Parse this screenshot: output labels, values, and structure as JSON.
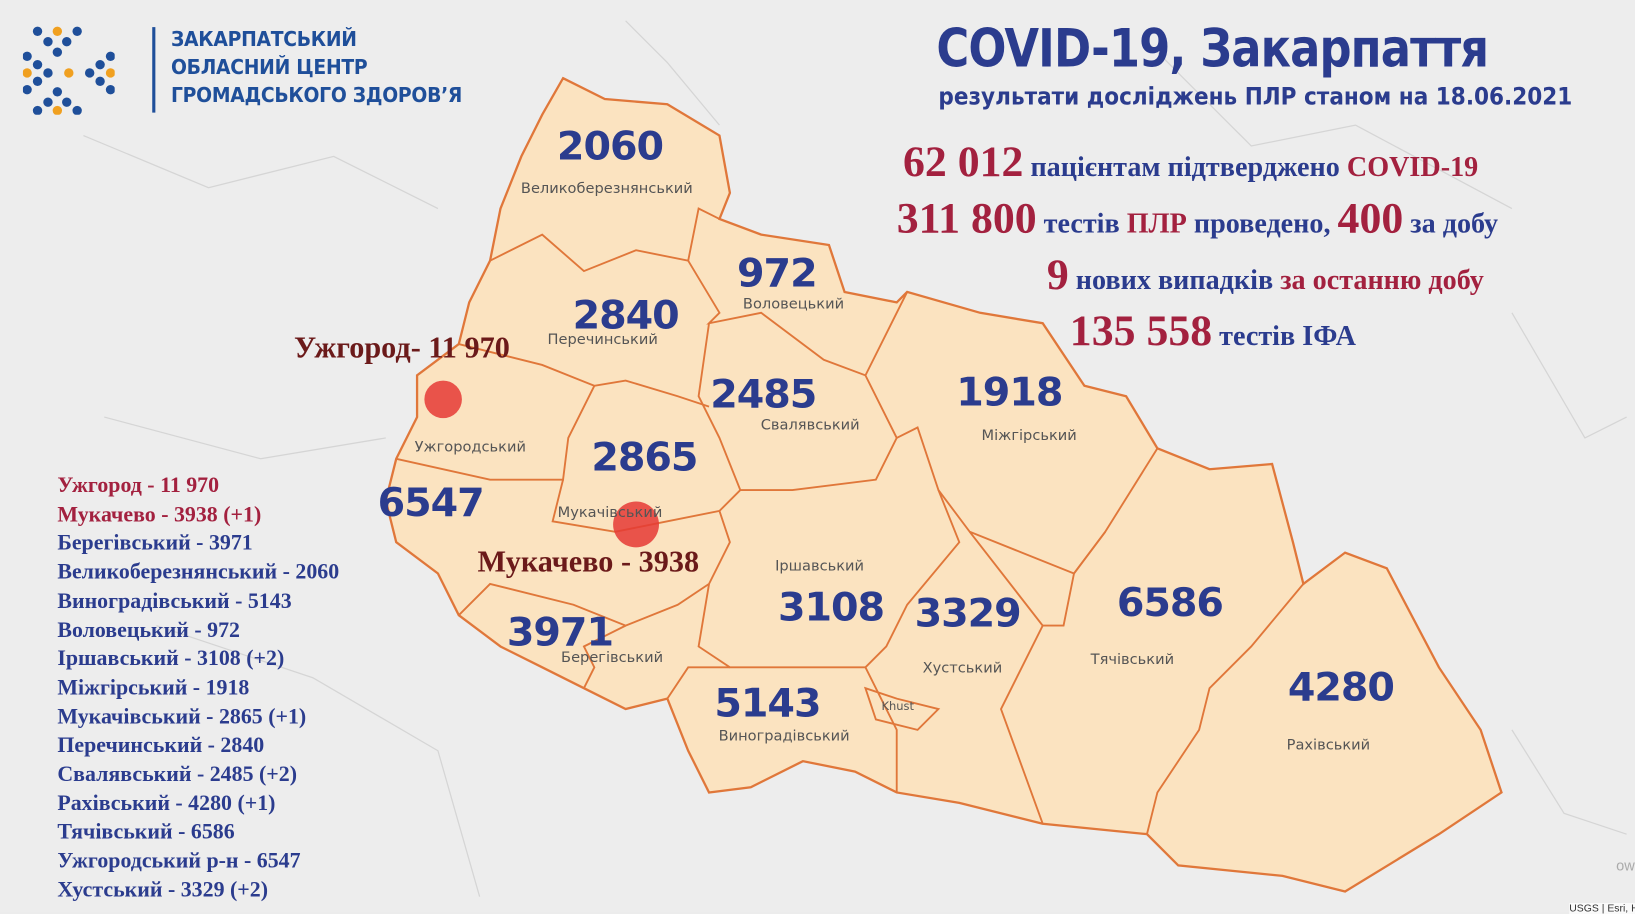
{
  "header": {
    "org_lines": [
      "ЗАКАРПАТСЬКИЙ",
      "ОБЛАСНИЙ ЦЕНТР",
      "ГРОМАДСЬКОГО ЗДОРОВ’Я"
    ],
    "title": "COVID-19, Закарпаття",
    "subtitle": "результати досліджень ПЛР станом на  18.06.2021"
  },
  "stats": {
    "confirmed": "62 012",
    "confirmed_text": "пацієнтам підтверджено",
    "confirmed_tag": "COVID-19",
    "tests": "311 800",
    "tests_text1": "тестів",
    "tests_tag": "ПЛР",
    "tests_text2": "проведено,",
    "tests_day": "400",
    "tests_day_text": "за добу",
    "new_cases": "9",
    "new_text": "нових випадків",
    "new_tag": "за останню добу",
    "ifa": "135 558",
    "ifa_text": "тестів ІФА"
  },
  "map": {
    "districts": [
      {
        "name": "Великоберезнянський",
        "count": "2060"
      },
      {
        "name": "Воловецький",
        "count": "972"
      },
      {
        "name": "Перечинський",
        "count": "2840"
      },
      {
        "name": "Свалявський",
        "count": "2485"
      },
      {
        "name": "Міжгірський",
        "count": "1918"
      },
      {
        "name": "Ужгородський",
        "count": "6547"
      },
      {
        "name": "Мукачівський",
        "count": "2865"
      },
      {
        "name": "Іршавський",
        "count": "3108"
      },
      {
        "name": "Хустський",
        "count": "3329"
      },
      {
        "name": "Тячівський",
        "count": "6586"
      },
      {
        "name": "Рахівський",
        "count": "4280"
      },
      {
        "name": "Берегівський",
        "count": "3971"
      },
      {
        "name": "Виноградівський",
        "count": "5143"
      }
    ],
    "khust": "Khust",
    "uzhhorod_label": "Ужгород- 11 970",
    "mukachevo_label": "Мукачево - 3938",
    "hotspot_color": "#e53935",
    "region_fill": "#fbe3c0",
    "border_color": "#e0773a",
    "attribution": "USGS | Esri, H",
    "corner_text": "ow"
  },
  "list": [
    {
      "text": "Ужгород - 11 970",
      "highlight": true
    },
    {
      "text": "Мукачево - 3938 (+1)",
      "highlight": true
    },
    {
      "text": "Берегівський - 3971"
    },
    {
      "text": "Великоберезнянський - 2060"
    },
    {
      "text": "Виноградівський - 5143"
    },
    {
      "text": "Воловецький - 972"
    },
    {
      "text": "Іршавський - 3108 (+2)"
    },
    {
      "text": "Міжгірський - 1918"
    },
    {
      "text": "Мукачівський - 2865 (+1)"
    },
    {
      "text": "Перечинський - 2840"
    },
    {
      "text": "Свалявський - 2485 (+2)"
    },
    {
      "text": "Рахівський - 4280 (+1)"
    },
    {
      "text": "Тячівський - 6586"
    },
    {
      "text": "Ужгородський р-н - 6547"
    },
    {
      "text": "Хустський - 3329 (+2)"
    }
  ],
  "colors": {
    "blue": "#2b3c8e",
    "red": "#a3213f",
    "logo_orange": "#f0a020",
    "logo_blue": "#1f4f9a"
  }
}
